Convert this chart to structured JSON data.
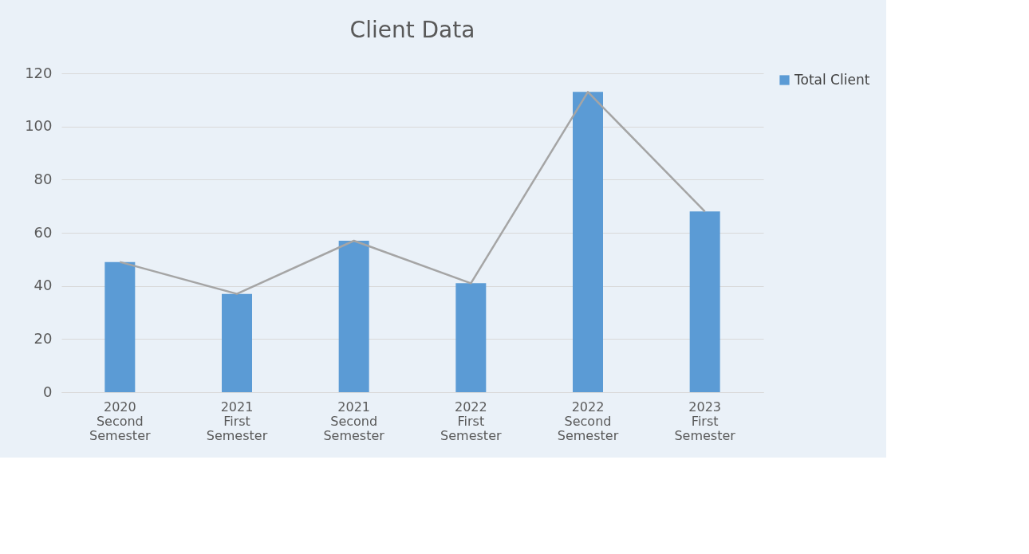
{
  "chart_data": {
    "type": "bar",
    "title": "Client Data",
    "categories": [
      "2020 Second Semester",
      "2021 First Semester",
      "2021 Second Semester",
      "2022 First Semester",
      "2022 Second Semester",
      "2023 First Semester"
    ],
    "series": [
      {
        "name": "Total Client",
        "color": "#5b9bd5",
        "values": [
          49,
          37,
          57,
          41,
          113,
          68
        ]
      },
      {
        "type": "line",
        "color": "#a5a5a5",
        "marker": "none",
        "values": [
          49,
          37,
          57,
          41,
          113,
          68
        ]
      }
    ],
    "ylim": [
      0,
      120
    ],
    "yticks": [
      0,
      20,
      40,
      60,
      80,
      100,
      120
    ],
    "grid": "y",
    "legend": "right"
  }
}
